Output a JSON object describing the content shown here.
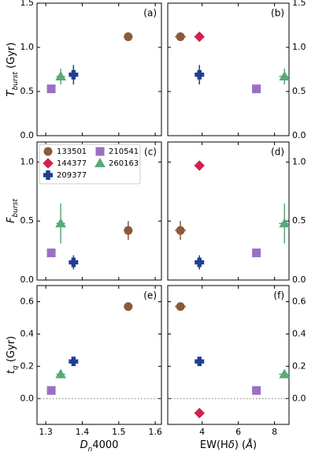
{
  "chart_data": [
    {
      "type": "scatter",
      "panel_label": "(a)",
      "ylabel": [
        "T",
        "burst",
        " (Gyr)"
      ],
      "xlim": [
        1.276,
        1.617
      ],
      "ylim": [
        0,
        1.5
      ],
      "yticks": [
        {
          "value": 0,
          "label": "0.0"
        },
        {
          "value": 0.5,
          "label": "0.5"
        },
        {
          "value": 1,
          "label": "1.0"
        },
        {
          "value": 1.5,
          "label": "1.5"
        }
      ],
      "series": [
        {
          "color": "#8b5a3c",
          "marker": "circle",
          "x": 1.526,
          "y": 1.12,
          "xerr": 0.012,
          "yerr": null
        },
        {
          "color": "#1f3f8f",
          "marker": "plus",
          "x": 1.376,
          "y": 0.69,
          "xerr": 0.008,
          "yerr": 0.11
        },
        {
          "color": "#9a6fc4",
          "marker": "square",
          "x": 1.315,
          "y": 0.53,
          "xerr": null,
          "yerr": null
        },
        {
          "color": "#5aa978",
          "marker": "triangle",
          "x": 1.341,
          "y": 0.67,
          "xerr": 0.012,
          "yerr": 0.09
        }
      ]
    },
    {
      "type": "scatter",
      "panel_label": "(b)",
      "xlim": [
        2.1,
        8.8
      ],
      "ylim": [
        0,
        1.5
      ],
      "yticks": [
        {
          "value": 0,
          "label": "0.0"
        },
        {
          "value": 0.5,
          "label": "0.5"
        },
        {
          "value": 1,
          "label": "1.0"
        },
        {
          "value": 1.5,
          "label": "1.5"
        }
      ],
      "series": [
        {
          "color": "#8b5a3c",
          "marker": "circle",
          "x": 2.8,
          "y": 1.12,
          "xerr": 0.3,
          "yerr": null
        },
        {
          "color": "#d2204f",
          "marker": "diamond",
          "x": 3.85,
          "y": 1.12,
          "xerr": null,
          "yerr": null
        },
        {
          "color": "#1f3f8f",
          "marker": "plus",
          "x": 3.85,
          "y": 0.69,
          "xerr": 0.2,
          "yerr": 0.11
        },
        {
          "color": "#9a6fc4",
          "marker": "square",
          "x": 7.0,
          "y": 0.53,
          "xerr": null,
          "yerr": null
        },
        {
          "color": "#5aa978",
          "marker": "triangle",
          "x": 8.55,
          "y": 0.67,
          "xerr": 0.3,
          "yerr": 0.09
        }
      ]
    },
    {
      "type": "scatter",
      "panel_label": "(c)",
      "ylabel": [
        "F",
        "burst",
        ""
      ],
      "legend": "upper left",
      "xlim": [
        1.276,
        1.617
      ],
      "ylim": [
        0,
        1.17
      ],
      "yticks": [
        {
          "value": 0,
          "label": "0.0"
        },
        {
          "value": 0.5,
          "label": "0.5"
        },
        {
          "value": 1,
          "label": "1.0"
        }
      ],
      "series": [
        {
          "name": "133501",
          "color": "#8b5a3c",
          "marker": "circle",
          "x": 1.526,
          "y": 0.42,
          "xerr": 0.012,
          "yerr": 0.08
        },
        {
          "name": "144377",
          "color": "#d2204f",
          "marker": "diamond",
          "x": null,
          "y": null,
          "xerr": null,
          "yerr": null
        },
        {
          "name": "209377",
          "color": "#1f3f8f",
          "marker": "plus",
          "x": 1.376,
          "y": 0.15,
          "xerr": 0.008,
          "yerr": 0.06
        },
        {
          "name": "210541",
          "color": "#9a6fc4",
          "marker": "square",
          "x": 1.315,
          "y": 0.23,
          "xerr": null,
          "yerr": null
        },
        {
          "name": "260163",
          "color": "#5aa978",
          "marker": "triangle",
          "x": 1.341,
          "y": 0.48,
          "xerr": 0.012,
          "yerr": 0.17
        }
      ]
    },
    {
      "type": "scatter",
      "panel_label": "(d)",
      "xlim": [
        2.1,
        8.8
      ],
      "ylim": [
        0,
        1.17
      ],
      "yticks": [
        {
          "value": 0,
          "label": "0.0"
        },
        {
          "value": 0.5,
          "label": "0.5"
        },
        {
          "value": 1,
          "label": "1.0"
        }
      ],
      "series": [
        {
          "color": "#8b5a3c",
          "marker": "circle",
          "x": 2.8,
          "y": 0.42,
          "xerr": 0.3,
          "yerr": 0.08
        },
        {
          "color": "#d2204f",
          "marker": "diamond",
          "x": 3.85,
          "y": 0.97,
          "xerr": null,
          "yerr": null
        },
        {
          "color": "#1f3f8f",
          "marker": "plus",
          "x": 3.85,
          "y": 0.15,
          "xerr": 0.2,
          "yerr": 0.06
        },
        {
          "color": "#9a6fc4",
          "marker": "square",
          "x": 7.0,
          "y": 0.23,
          "xerr": null,
          "yerr": null
        },
        {
          "color": "#5aa978",
          "marker": "triangle",
          "x": 8.55,
          "y": 0.48,
          "xerr": 0.3,
          "yerr": 0.17
        }
      ]
    },
    {
      "type": "scatter",
      "panel_label": "(e)",
      "ylabel": [
        "t",
        "q",
        " (Gyr)"
      ],
      "xlabel": [
        "D",
        "n",
        "4000"
      ],
      "hline": 0,
      "xlim": [
        1.276,
        1.617
      ],
      "ylim": [
        -0.16,
        0.7
      ],
      "xticks": [
        1.3,
        1.4,
        1.5,
        1.6
      ],
      "yticks": [
        {
          "value": 0,
          "label": "0.0"
        },
        0.2,
        0.4,
        0.6
      ],
      "series": [
        {
          "color": "#8b5a3c",
          "marker": "circle",
          "x": 1.526,
          "y": 0.57,
          "xerr": 0.012,
          "yerr": null
        },
        {
          "color": "#1f3f8f",
          "marker": "plus",
          "x": 1.376,
          "y": 0.23,
          "xerr": 0.008,
          "yerr": 0.02
        },
        {
          "color": "#9a6fc4",
          "marker": "square",
          "x": 1.315,
          "y": 0.05,
          "xerr": null,
          "yerr": null
        },
        {
          "color": "#5aa978",
          "marker": "triangle",
          "x": 1.341,
          "y": 0.15,
          "xerr": 0.012,
          "yerr": null
        }
      ]
    },
    {
      "type": "scatter",
      "panel_label": "(f)",
      "xlabel": [
        "EW(H",
        "δ",
        ") (",
        "Å",
        ")"
      ],
      "hline": 0,
      "xlim": [
        2.1,
        8.8
      ],
      "ylim": [
        -0.16,
        0.7
      ],
      "xticks": [
        4,
        6,
        8
      ],
      "yticks": [
        {
          "value": 0,
          "label": "0.0"
        },
        0.2,
        0.4,
        0.6
      ],
      "series": [
        {
          "color": "#8b5a3c",
          "marker": "circle",
          "x": 2.8,
          "y": 0.57,
          "xerr": 0.3,
          "yerr": null
        },
        {
          "color": "#d2204f",
          "marker": "diamond",
          "x": 3.85,
          "y": -0.09,
          "xerr": null,
          "yerr": null
        },
        {
          "color": "#1f3f8f",
          "marker": "plus",
          "x": 3.85,
          "y": 0.23,
          "xerr": 0.2,
          "yerr": 0.02
        },
        {
          "color": "#9a6fc4",
          "marker": "square",
          "x": 7.0,
          "y": 0.05,
          "xerr": null,
          "yerr": null
        },
        {
          "color": "#5aa978",
          "marker": "triangle",
          "x": 8.55,
          "y": 0.15,
          "xerr": 0.3,
          "yerr": null
        }
      ]
    }
  ]
}
